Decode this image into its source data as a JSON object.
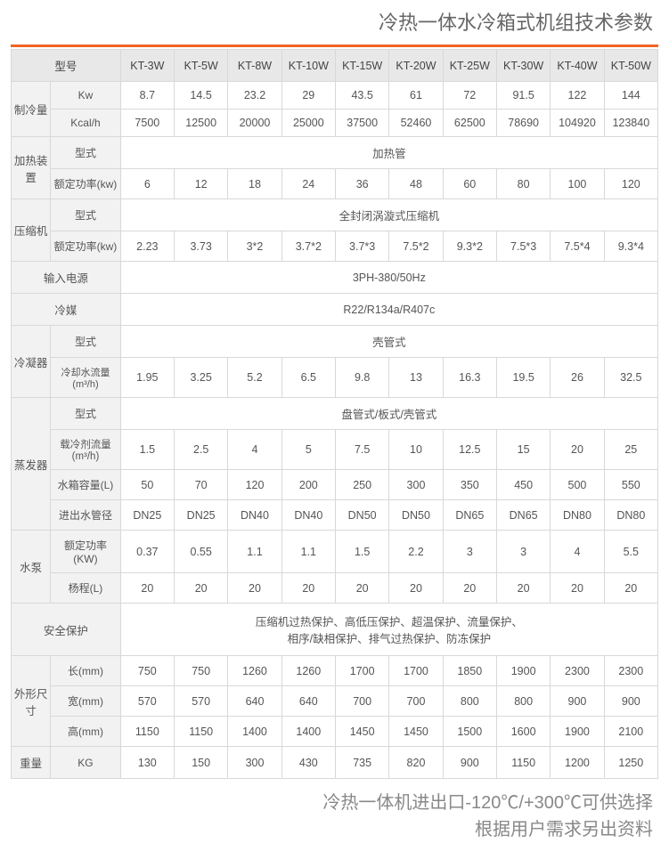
{
  "title": "冷热一体水冷箱式机组技术参数",
  "footer_l1": "冷热一体机进出口-120℃/+300℃可供选择",
  "footer_l2": "根据用户需求另出资料",
  "headers": {
    "model": "型号",
    "m0": "KT-3W",
    "m1": "KT-5W",
    "m2": "KT-8W",
    "m3": "KT-10W",
    "m4": "KT-15W",
    "m5": "KT-20W",
    "m6": "KT-25W",
    "m7": "KT-30W",
    "m8": "KT-40W",
    "m9": "KT-50W"
  },
  "labels": {
    "cooling": "制冷量",
    "kw": "Kw",
    "kcal": "Kcal/h",
    "heater": "加热装置",
    "type": "型式",
    "rated_kw": "额定功率(kw)",
    "compressor": "压缩机",
    "power_in": "输入电源",
    "refrigerant": "冷媒",
    "condenser": "冷凝器",
    "cooling_flow": "冷却水流量(m³/h)",
    "evaporator": "蒸发器",
    "coolant_flow": "载冷剂流量\n(m³/h)",
    "tank": "水箱容量(L)",
    "pipe": "进出水管径",
    "pump": "水泵",
    "rated_KW": "额定功率(KW)",
    "head": "杨程(L)",
    "safety": "安全保护",
    "dims": "外形尺寸",
    "L": "长(mm)",
    "W": "宽(mm)",
    "H": "高(mm)",
    "weight": "重量",
    "kg": "KG"
  },
  "spans": {
    "heater_type": "加热管",
    "compressor_type": "全封闭涡漩式压缩机",
    "power_in": "3PH-380/50Hz",
    "refrigerant": "R22/R134a/R407c",
    "condenser_type": "壳管式",
    "evap_type": "盘管式/板式/壳管式",
    "safety": "压缩机过热保护、高低压保护、超温保护、流量保护、\n相序/缺相保护、排气过热保护、防冻保护"
  },
  "rows": {
    "kw": [
      "8.7",
      "14.5",
      "23.2",
      "29",
      "43.5",
      "61",
      "72",
      "91.5",
      "122",
      "144"
    ],
    "kcal": [
      "7500",
      "12500",
      "20000",
      "25000",
      "37500",
      "52460",
      "62500",
      "78690",
      "104920",
      "123840"
    ],
    "heater_kw": [
      "6",
      "12",
      "18",
      "24",
      "36",
      "48",
      "60",
      "80",
      "100",
      "120"
    ],
    "comp_kw": [
      "2.23",
      "3.73",
      "3*2",
      "3.7*2",
      "3.7*3",
      "7.5*2",
      "9.3*2",
      "7.5*3",
      "7.5*4",
      "9.3*4"
    ],
    "cond_flow": [
      "1.95",
      "3.25",
      "5.2",
      "6.5",
      "9.8",
      "13",
      "16.3",
      "19.5",
      "26",
      "32.5"
    ],
    "evap_flow": [
      "1.5",
      "2.5",
      "4",
      "5",
      "7.5",
      "10",
      "12.5",
      "15",
      "20",
      "25"
    ],
    "tank": [
      "50",
      "70",
      "120",
      "200",
      "250",
      "300",
      "350",
      "450",
      "500",
      "550"
    ],
    "pipe": [
      "DN25",
      "DN25",
      "DN40",
      "DN40",
      "DN50",
      "DN50",
      "DN65",
      "DN65",
      "DN80",
      "DN80"
    ],
    "pump_kw": [
      "0.37",
      "0.55",
      "1.1",
      "1.1",
      "1.5",
      "2.2",
      "3",
      "3",
      "4",
      "5.5"
    ],
    "head": [
      "20",
      "20",
      "20",
      "20",
      "20",
      "20",
      "20",
      "20",
      "20",
      "20"
    ],
    "L": [
      "750",
      "750",
      "1260",
      "1260",
      "1700",
      "1700",
      "1850",
      "1900",
      "2300",
      "2300"
    ],
    "W": [
      "570",
      "570",
      "640",
      "640",
      "700",
      "700",
      "800",
      "800",
      "900",
      "900"
    ],
    "H": [
      "1150",
      "1150",
      "1400",
      "1400",
      "1450",
      "1450",
      "1500",
      "1600",
      "1900",
      "2100"
    ],
    "kg": [
      "130",
      "150",
      "300",
      "430",
      "735",
      "820",
      "900",
      "1150",
      "1200",
      "1250"
    ]
  }
}
